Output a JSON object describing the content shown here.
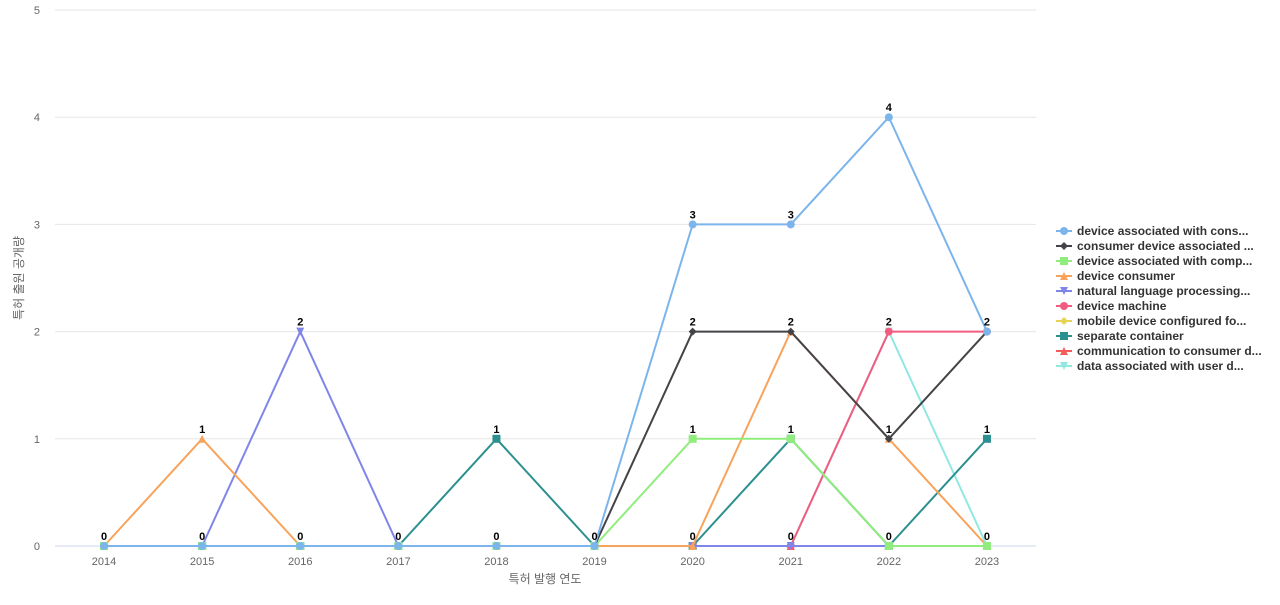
{
  "chart_data": {
    "type": "line",
    "title": "",
    "xlabel": "특허 발행 연도",
    "ylabel": "특허 출원 공개량",
    "categories": [
      "2014",
      "2015",
      "2016",
      "2017",
      "2018",
      "2019",
      "2020",
      "2021",
      "2022",
      "2023"
    ],
    "ylim": [
      0,
      5
    ],
    "yticks": [
      0,
      1,
      2,
      3,
      4,
      5
    ],
    "grid": true,
    "legend_position": "right",
    "series": [
      {
        "name": "device associated with cons...",
        "color": "#7cb5ec",
        "marker": "circle",
        "values": [
          0,
          0,
          0,
          0,
          0,
          0,
          3,
          3,
          4,
          2
        ]
      },
      {
        "name": "consumer device associated ...",
        "color": "#434348",
        "marker": "diamond",
        "values": [
          0,
          0,
          0,
          0,
          0,
          0,
          2,
          2,
          1,
          2
        ]
      },
      {
        "name": "device associated with comp...",
        "color": "#90ed7d",
        "marker": "square",
        "values": [
          0,
          0,
          0,
          0,
          0,
          0,
          1,
          1,
          0,
          0
        ]
      },
      {
        "name": "device consumer",
        "color": "#f7a35c",
        "marker": "triangle",
        "values": [
          0,
          1,
          0,
          0,
          0,
          0,
          0,
          2,
          1,
          0
        ]
      },
      {
        "name": "natural language processing...",
        "color": "#8085e9",
        "marker": "triangle-down",
        "values": [
          0,
          0,
          2,
          0,
          0,
          0,
          0,
          0,
          0,
          0
        ]
      },
      {
        "name": "device machine",
        "color": "#f15c80",
        "marker": "circle",
        "values": [
          0,
          0,
          0,
          0,
          0,
          0,
          0,
          0,
          2,
          2
        ]
      },
      {
        "name": "mobile device configured fo...",
        "color": "#e4d354",
        "marker": "diamond",
        "values": [
          0,
          0,
          0,
          0,
          0,
          0,
          0,
          0,
          0,
          0
        ]
      },
      {
        "name": "separate container",
        "color": "#2b908f",
        "marker": "square",
        "values": [
          0,
          0,
          0,
          0,
          1,
          0,
          0,
          1,
          0,
          1
        ]
      },
      {
        "name": "communication to consumer d...",
        "color": "#f45b5b",
        "marker": "triangle",
        "values": [
          0,
          0,
          0,
          0,
          0,
          0,
          0,
          0,
          0,
          0
        ]
      },
      {
        "name": "data associated with user d...",
        "color": "#91e8e1",
        "marker": "triangle-down",
        "values": [
          0,
          0,
          0,
          0,
          0,
          0,
          0,
          0,
          2,
          0
        ]
      }
    ],
    "data_labels": [
      {
        "category": "2014",
        "value": 0,
        "text": "0"
      },
      {
        "category": "2015",
        "value": 1,
        "text": "1"
      },
      {
        "category": "2015",
        "value": 0,
        "text": "0"
      },
      {
        "category": "2016",
        "value": 2,
        "text": "2"
      },
      {
        "category": "2016",
        "value": 0,
        "text": "0"
      },
      {
        "category": "2017",
        "value": 0,
        "text": "0"
      },
      {
        "category": "2018",
        "value": 1,
        "text": "1"
      },
      {
        "category": "2018",
        "value": 0,
        "text": "0"
      },
      {
        "category": "2019",
        "value": 0,
        "text": "0"
      },
      {
        "category": "2020",
        "value": 3,
        "text": "3"
      },
      {
        "category": "2020",
        "value": 2,
        "text": "2"
      },
      {
        "category": "2020",
        "value": 1,
        "text": "1"
      },
      {
        "category": "2020",
        "value": 0,
        "text": "0"
      },
      {
        "category": "2021",
        "value": 3,
        "text": "3"
      },
      {
        "category": "2021",
        "value": 2,
        "text": "2"
      },
      {
        "category": "2021",
        "value": 1,
        "text": "1"
      },
      {
        "category": "2021",
        "value": 0,
        "text": "0"
      },
      {
        "category": "2022",
        "value": 4,
        "text": "4"
      },
      {
        "category": "2022",
        "value": 2,
        "text": "2"
      },
      {
        "category": "2022",
        "value": 1,
        "text": "1"
      },
      {
        "category": "2022",
        "value": 0,
        "text": "0"
      },
      {
        "category": "2023",
        "value": 2,
        "text": "2"
      },
      {
        "category": "2023",
        "value": 1,
        "text": "1"
      },
      {
        "category": "2023",
        "value": 0,
        "text": "0"
      }
    ]
  }
}
